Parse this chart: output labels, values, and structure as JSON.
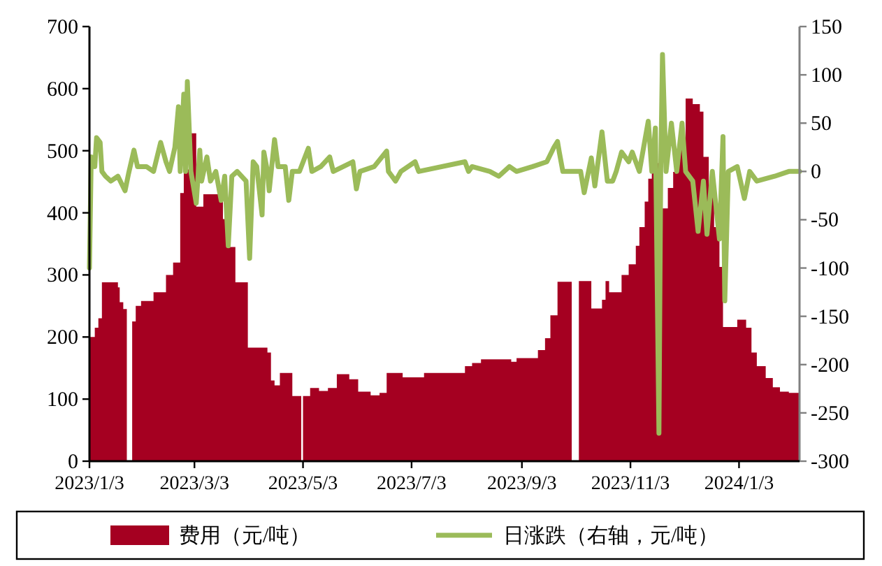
{
  "chart_data": {
    "type": "area",
    "xlim": [
      "2023-01-03",
      "2024-02-06"
    ],
    "xticks": [
      {
        "value": "2023-01-03",
        "label": "2023/1/3"
      },
      {
        "value": "2023-03-03",
        "label": "2023/3/3"
      },
      {
        "value": "2023-05-03",
        "label": "2023/5/3"
      },
      {
        "value": "2023-07-03",
        "label": "2023/7/3"
      },
      {
        "value": "2023-09-03",
        "label": "2023/9/3"
      },
      {
        "value": "2023-11-03",
        "label": "2023/11/3"
      },
      {
        "value": "2024-01-03",
        "label": "2024/1/3"
      }
    ],
    "ylim": [
      0,
      700
    ],
    "yticks": [
      0,
      100,
      200,
      300,
      400,
      500,
      600,
      700
    ],
    "y2lim": [
      -300,
      150
    ],
    "y2ticks": [
      -300,
      -250,
      -200,
      -150,
      -100,
      -50,
      0,
      50,
      100,
      150
    ],
    "legend": "bottom",
    "series": [
      {
        "name": "费用（元/吨）",
        "color": "#a50021",
        "x": [
          "2023-01-03",
          "2023-01-06",
          "2023-01-08",
          "2023-01-10",
          "2023-01-19",
          "2023-01-20",
          "2023-01-22",
          "2023-01-24",
          "2023-01-27",
          "2023-01-29",
          "2023-02-01",
          "2023-02-08",
          "2023-02-15",
          "2023-02-19",
          "2023-02-23",
          "2023-02-25",
          "2023-03-01",
          "2023-03-04",
          "2023-03-08",
          "2023-03-19",
          "2023-03-23",
          "2023-03-26",
          "2023-04-02",
          "2023-04-13",
          "2023-04-15",
          "2023-04-17",
          "2023-04-20",
          "2023-04-27",
          "2023-05-02",
          "2023-05-03",
          "2023-05-07",
          "2023-05-12",
          "2023-05-17",
          "2023-05-22",
          "2023-05-29",
          "2023-06-03",
          "2023-06-10",
          "2023-06-15",
          "2023-06-19",
          "2023-06-28",
          "2023-07-10",
          "2023-08-02",
          "2023-08-06",
          "2023-08-11",
          "2023-08-28",
          "2023-08-31",
          "2023-09-12",
          "2023-09-16",
          "2023-09-19",
          "2023-09-23",
          "2023-10-01",
          "2023-10-05",
          "2023-10-12",
          "2023-10-18",
          "2023-10-20",
          "2023-10-22",
          "2023-10-29",
          "2023-11-02",
          "2023-11-06",
          "2023-11-08",
          "2023-11-11",
          "2023-11-13",
          "2023-11-15",
          "2023-11-17",
          "2023-11-20",
          "2023-11-21",
          "2023-11-24",
          "2023-11-27",
          "2023-11-30",
          "2023-12-04",
          "2023-12-08",
          "2023-12-12",
          "2023-12-14",
          "2023-12-17",
          "2023-12-20",
          "2023-12-23",
          "2023-12-25",
          "2024-01-02",
          "2024-01-07",
          "2024-01-10",
          "2024-01-13",
          "2024-01-18",
          "2024-01-22",
          "2024-01-26",
          "2024-01-31",
          "2024-02-06"
        ],
        "values": [
          200,
          215,
          230,
          288,
          280,
          256,
          245,
          null,
          225,
          250,
          258,
          272,
          300,
          320,
          432,
          470,
          528,
          410,
          430,
          390,
          345,
          288,
          183,
          175,
          130,
          122,
          142,
          105,
          null,
          105,
          118,
          113,
          118,
          140,
          132,
          112,
          106,
          110,
          142,
          135,
          142,
          153,
          158,
          164,
          160,
          166,
          179,
          198,
          235,
          289,
          null,
          290,
          246,
          260,
          290,
          272,
          300,
          317,
          347,
          377,
          418,
          455,
          500,
          480,
          400,
          407,
          440,
          466,
          519,
          584,
          575,
          563,
          490,
          440,
          377,
          313,
          216,
          228,
          215,
          175,
          153,
          134,
          119,
          112,
          110,
          110
        ]
      },
      {
        "name": "日涨跌（右轴，元/吨）",
        "type": "line",
        "axis": "y2",
        "color": "#9bbb59",
        "x": [
          "2023-01-03",
          "2023-01-04",
          "2023-01-06",
          "2023-01-07",
          "2023-01-09",
          "2023-01-10",
          "2023-01-12",
          "2023-01-15",
          "2023-01-19",
          "2023-01-23",
          "2023-01-25",
          "2023-01-28",
          "2023-01-30",
          "2023-02-04",
          "2023-02-08",
          "2023-02-12",
          "2023-02-15",
          "2023-02-17",
          "2023-02-20",
          "2023-02-22",
          "2023-02-23",
          "2023-02-25",
          "2023-02-26",
          "2023-02-27",
          "2023-03-01",
          "2023-03-04",
          "2023-03-06",
          "2023-03-07",
          "2023-03-10",
          "2023-03-12",
          "2023-03-15",
          "2023-03-18",
          "2023-03-20",
          "2023-03-22",
          "2023-03-24",
          "2023-03-27",
          "2023-04-01",
          "2023-04-03",
          "2023-04-05",
          "2023-04-07",
          "2023-04-10",
          "2023-04-11",
          "2023-04-13",
          "2023-04-14",
          "2023-04-17",
          "2023-04-19",
          "2023-04-23",
          "2023-04-25",
          "2023-04-27",
          "2023-05-01",
          "2023-05-06",
          "2023-05-08",
          "2023-05-13",
          "2023-05-18",
          "2023-05-20",
          "2023-05-31",
          "2023-06-02",
          "2023-06-04",
          "2023-06-12",
          "2023-06-19",
          "2023-06-20",
          "2023-06-24",
          "2023-06-27",
          "2023-07-05",
          "2023-07-07",
          "2023-08-02",
          "2023-08-04",
          "2023-08-06",
          "2023-08-16",
          "2023-08-21",
          "2023-08-27",
          "2023-08-31",
          "2023-09-09",
          "2023-09-17",
          "2023-09-21",
          "2023-09-23",
          "2023-09-24",
          "2023-09-26",
          "2023-10-06",
          "2023-10-08",
          "2023-10-12",
          "2023-10-14",
          "2023-10-18",
          "2023-10-21",
          "2023-10-24",
          "2023-10-26",
          "2023-10-29",
          "2023-11-02",
          "2023-11-04",
          "2023-11-08",
          "2023-11-13",
          "2023-11-15",
          "2023-11-17",
          "2023-11-19",
          "2023-11-20",
          "2023-11-21",
          "2023-11-23",
          "2023-11-26",
          "2023-11-29",
          "2023-12-02",
          "2023-12-04",
          "2023-12-08",
          "2023-12-11",
          "2023-12-14",
          "2023-12-16",
          "2023-12-19",
          "2023-12-23",
          "2023-12-25",
          "2023-12-26",
          "2023-12-28",
          "2024-01-02",
          "2024-01-06",
          "2024-01-09",
          "2024-01-13",
          "2024-01-23",
          "2024-01-31",
          "2024-02-06"
        ],
        "values": [
          -100,
          15,
          5,
          35,
          30,
          0,
          -5,
          -10,
          -5,
          -20,
          -2,
          22,
          5,
          5,
          0,
          30,
          10,
          0,
          25,
          67,
          0,
          80,
          0,
          93,
          0,
          -33,
          22,
          -10,
          15,
          -10,
          0,
          -30,
          -5,
          -77,
          -5,
          0,
          -10,
          -90,
          10,
          5,
          -45,
          20,
          0,
          -20,
          33,
          5,
          5,
          -30,
          0,
          0,
          24,
          0,
          5,
          15,
          0,
          10,
          -18,
          0,
          5,
          21,
          0,
          -10,
          0,
          10,
          0,
          10,
          0,
          5,
          0,
          -5,
          5,
          0,
          5,
          10,
          25,
          31,
          20,
          0,
          0,
          -22,
          14,
          -15,
          41,
          -10,
          -10,
          0,
          20,
          10,
          20,
          0,
          52,
          0,
          45,
          -271,
          0,
          121,
          0,
          50,
          0,
          50,
          0,
          -10,
          -62,
          -10,
          -65,
          0,
          -70,
          36,
          -134,
          0,
          5,
          -28,
          0,
          -10,
          -5,
          0,
          0
        ]
      }
    ]
  }
}
